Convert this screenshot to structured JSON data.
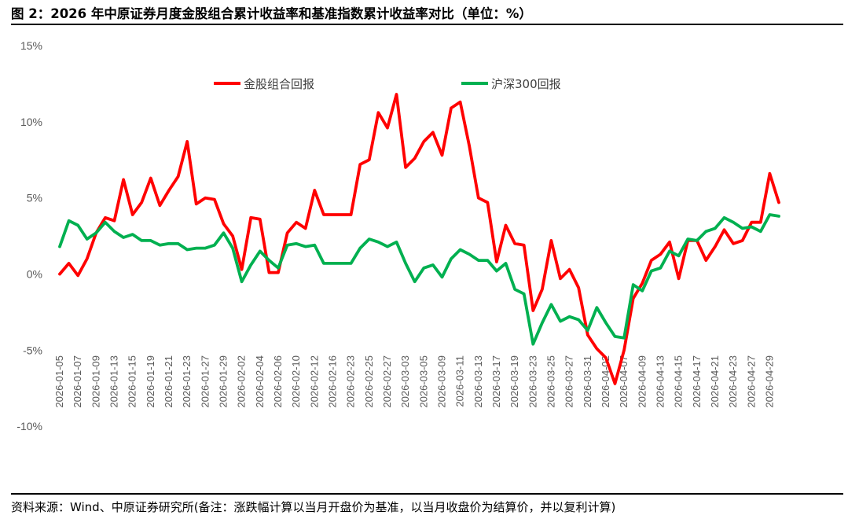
{
  "header": {
    "title": "图 2：2026 年中原证券月度金股组合累计收益率和基准指数累计收益率对比（单位：%）"
  },
  "footer": {
    "source": "资料来源：Wind、中原证券研究所(备注：涨跌幅计算以当月开盘价为基准，以当月收盘价为结算价，并以复利计算)"
  },
  "chart_data": {
    "type": "line",
    "ylim": [
      -0.125,
      0.15
    ],
    "yticks": [
      {
        "value": 0.15,
        "label": "15%"
      },
      {
        "value": 0.1,
        "label": "10%"
      },
      {
        "value": 0.05,
        "label": "5%"
      },
      {
        "value": 0.0,
        "label": "0%"
      },
      {
        "value": -0.05,
        "label": "-5%"
      },
      {
        "value": -0.1,
        "label": "-10%"
      }
    ],
    "x": [
      "2026-01-05",
      "2026-01-06",
      "2026-01-07",
      "2026-01-08",
      "2026-01-09",
      "2026-01-12",
      "2026-01-13",
      "2026-01-14",
      "2026-01-15",
      "2026-01-16",
      "2026-01-19",
      "2026-01-20",
      "2026-01-21",
      "2026-01-22",
      "2026-01-23",
      "2026-01-26",
      "2026-01-27",
      "2026-01-28",
      "2026-01-29",
      "2026-01-30",
      "2026-02-02",
      "2026-02-03",
      "2026-02-04",
      "2026-02-05",
      "2026-02-06",
      "2026-02-09",
      "2026-02-10",
      "2026-02-11",
      "2026-02-12",
      "2026-02-13",
      "2026-02-16",
      "2026-02-20",
      "2026-02-23",
      "2026-02-24",
      "2026-02-25",
      "2026-02-26",
      "2026-02-27",
      "2026-03-02",
      "2026-03-03",
      "2026-03-04",
      "2026-03-05",
      "2026-03-06",
      "2026-03-09",
      "2026-03-10",
      "2026-03-11",
      "2026-03-12",
      "2026-03-13",
      "2026-03-16",
      "2026-03-17",
      "2026-03-18",
      "2026-03-19",
      "2026-03-20",
      "2026-03-23",
      "2026-03-24",
      "2026-03-25",
      "2026-03-26",
      "2026-03-27",
      "2026-03-30",
      "2026-03-31",
      "2026-04-01",
      "2026-04-02",
      "2026-04-03",
      "2026-04-07",
      "2026-04-08",
      "2026-04-09",
      "2026-04-10",
      "2026-04-13",
      "2026-04-14",
      "2026-04-15",
      "2026-04-16",
      "2026-04-17",
      "2026-04-20",
      "2026-04-21",
      "2026-04-22",
      "2026-04-23",
      "2026-04-24",
      "2026-04-27",
      "2026-04-28",
      "2026-04-29",
      "2026-04-30"
    ],
    "xtick_every": 2,
    "series": [
      {
        "name": "金股组合回报",
        "color": "#ff0000",
        "values": [
          0.0,
          0.007,
          -0.001,
          0.01,
          0.027,
          0.037,
          0.035,
          0.062,
          0.039,
          0.047,
          0.063,
          0.045,
          0.055,
          0.064,
          0.087,
          0.046,
          0.05,
          0.049,
          0.033,
          0.025,
          0.003,
          0.037,
          0.036,
          0.001,
          0.001,
          0.027,
          0.034,
          0.03,
          0.055,
          0.039,
          0.039,
          0.039,
          0.039,
          0.072,
          0.075,
          0.106,
          0.096,
          0.118,
          0.07,
          0.076,
          0.087,
          0.093,
          0.078,
          0.109,
          0.113,
          0.084,
          0.05,
          0.047,
          0.008,
          0.032,
          0.02,
          0.019,
          -0.024,
          -0.01,
          0.022,
          -0.003,
          0.003,
          -0.009,
          -0.04,
          -0.049,
          -0.055,
          -0.072,
          -0.05,
          -0.016,
          -0.006,
          0.009,
          0.013,
          0.021,
          -0.003,
          0.022,
          0.022,
          0.009,
          0.018,
          0.029,
          0.02,
          0.022,
          0.034,
          0.034,
          0.066,
          0.047
        ]
      },
      {
        "name": "沪深300回报",
        "color": "#00b050",
        "values": [
          0.018,
          0.035,
          0.032,
          0.023,
          0.027,
          0.034,
          0.028,
          0.024,
          0.026,
          0.022,
          0.022,
          0.019,
          0.02,
          0.02,
          0.016,
          0.017,
          0.017,
          0.019,
          0.027,
          0.017,
          -0.005,
          0.006,
          0.015,
          0.009,
          0.004,
          0.019,
          0.02,
          0.018,
          0.019,
          0.007,
          0.007,
          0.007,
          0.007,
          0.017,
          0.023,
          0.021,
          0.018,
          0.021,
          0.007,
          -0.005,
          0.004,
          0.006,
          -0.002,
          0.01,
          0.016,
          0.013,
          0.009,
          0.009,
          0.002,
          0.007,
          -0.01,
          -0.013,
          -0.046,
          -0.032,
          -0.02,
          -0.031,
          -0.028,
          -0.03,
          -0.037,
          -0.022,
          -0.032,
          -0.041,
          -0.042,
          -0.007,
          -0.011,
          0.002,
          0.004,
          0.015,
          0.012,
          0.023,
          0.022,
          0.028,
          0.03,
          0.037,
          0.034,
          0.03,
          0.031,
          0.028,
          0.039,
          0.038
        ]
      }
    ],
    "legend": "top-center",
    "grid": false
  }
}
